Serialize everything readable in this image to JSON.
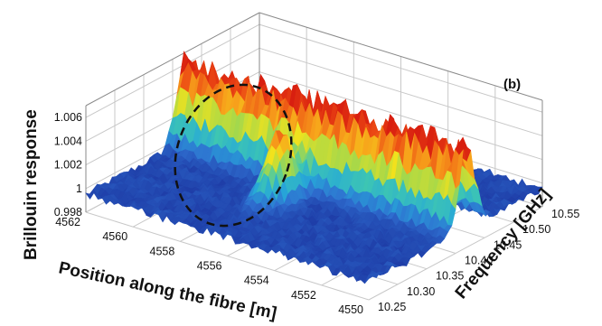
{
  "chart_data": {
    "type": "surface3d",
    "panel_label": "(b)",
    "xlabel": "Position along the fibre [m]",
    "ylabel": "Frequency [GHz]",
    "zlabel": "Brillouin response",
    "x_ticks": [
      "4562",
      "4560",
      "4558",
      "4556",
      "4554",
      "4552",
      "4550"
    ],
    "y_ticks": [
      "10.25",
      "10.30",
      "10.35",
      "10.40",
      "10.45",
      "10.50",
      "10.55"
    ],
    "z_ticks": [
      "0.998",
      "1",
      "1.002",
      "1.004",
      "1.006"
    ],
    "xlim": [
      4562,
      4550
    ],
    "ylim": [
      10.25,
      10.55
    ],
    "zlim": [
      0.998,
      1.007
    ],
    "grid": true,
    "colormap": [
      "#1f3ea8",
      "#2f6fd0",
      "#27a8d8",
      "#3fc8b0",
      "#a6d84a",
      "#f2e21c",
      "#f7a21b",
      "#ec4a14",
      "#d81f10"
    ],
    "features": {
      "ridge_frequency_ghz": 10.42,
      "ridge_peak": 1.0062,
      "hotspot_position_m": 4556.5,
      "hotspot_frequency_ghz": 10.36,
      "hotspot_peak": 1.0055,
      "baseline": 0.9995,
      "annotation": "dashed-ellipse-around-hotspot"
    }
  }
}
